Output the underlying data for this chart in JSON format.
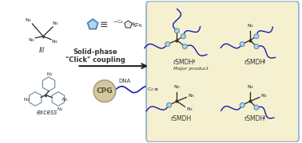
{
  "bg_color": "#ffffff",
  "left_bg": "#ffffff",
  "right_bg": "#f5f0d0",
  "right_border_color": "#a0b8d0",
  "arrow_color": "#222222",
  "dna_color": "#1a1aaa",
  "bond_color": "#222222",
  "azide_color": "#222222",
  "cpg_color": "#d4c8a0",
  "cpg_border": "#b0a080",
  "node_color": "#aad4f0",
  "node_border": "#6090b0",
  "pentagon_fill": "#aad4f0",
  "pentagon_border": "#4a7aaa",
  "title_text": "Solid-phase\n\"Click\" coupling",
  "label_III": "III",
  "label_excess": "excess",
  "label_CPG": "CPG",
  "label_DNA": "DNA",
  "label_rSMDH4": "rSMDH",
  "label_rSMDH4_sub": "4",
  "label_major": "Major product",
  "label_rSMDH3": "rSMDH",
  "label_rSMDH3_sub": "3",
  "label_rSMDH": "rSMDH",
  "label_rSMDH2": "rSMDH",
  "label_rSMDH2_sub": "2",
  "fig_width": 3.78,
  "fig_height": 1.8,
  "dpi": 100
}
